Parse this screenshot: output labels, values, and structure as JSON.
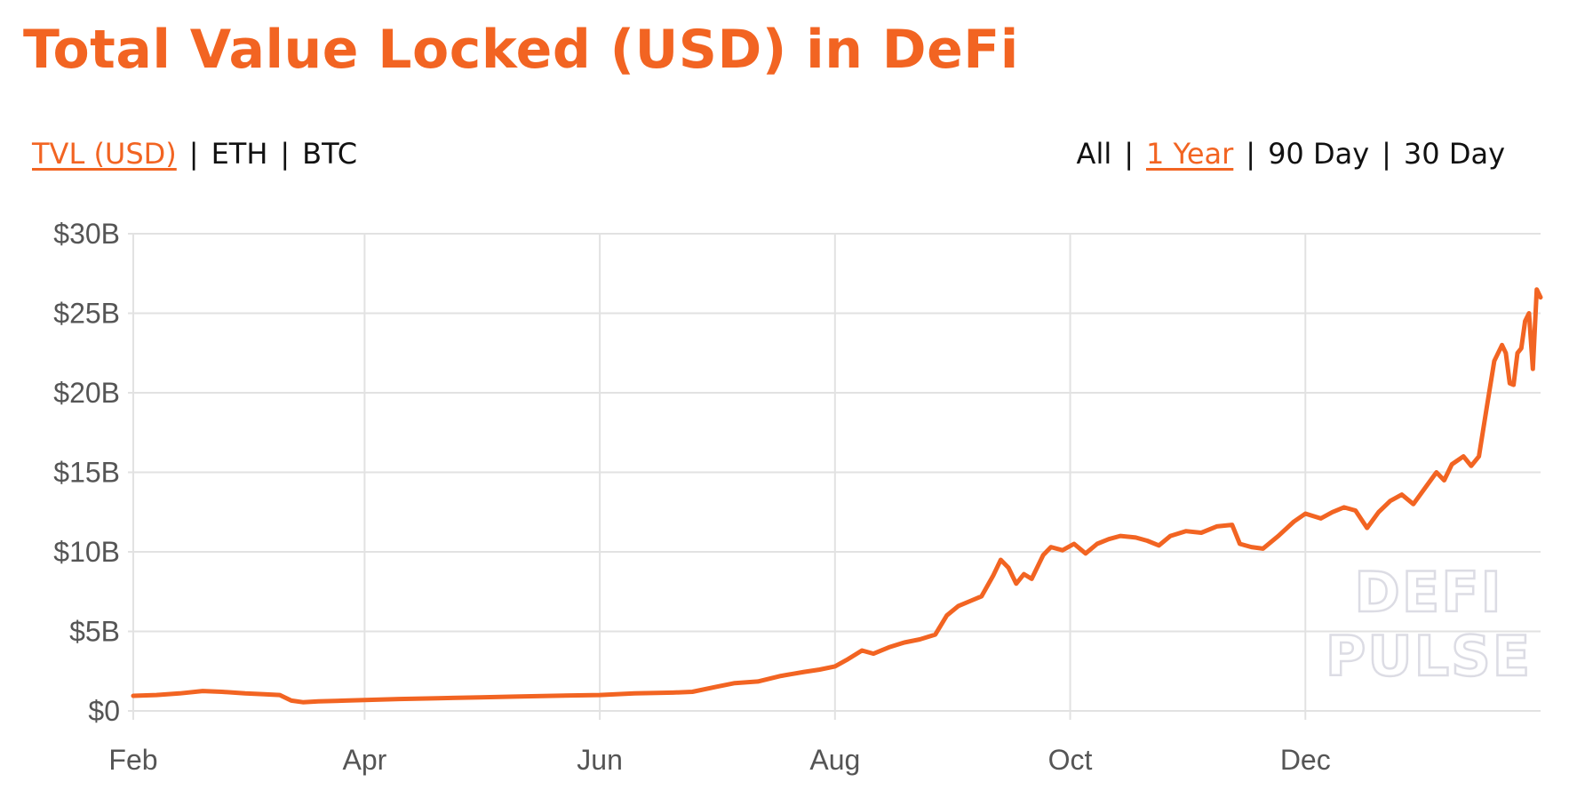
{
  "header": {
    "title": "Total Value Locked (USD) in DeFi"
  },
  "unit_toggle": {
    "options": [
      "TVL (USD)",
      "ETH",
      "BTC"
    ],
    "selected": "TVL (USD)"
  },
  "range_toggle": {
    "options": [
      "All",
      "1 Year",
      "90 Day",
      "30 Day"
    ],
    "selected": "1 Year"
  },
  "separator": "|",
  "watermark": {
    "line1": "DEFI",
    "line2": "PULSE"
  },
  "colors": {
    "accent": "#f26422",
    "line": "#f26422",
    "grid": "#e2e2e2",
    "tick_text": "#555555"
  },
  "chart_data": {
    "type": "line",
    "title": "Total Value Locked (USD) in DeFi",
    "xlabel": "",
    "ylabel": "",
    "x_axis": "date",
    "x_ticks": [
      "Feb",
      "Apr",
      "Jun",
      "Aug",
      "Oct",
      "Dec"
    ],
    "x_tick_dates": [
      "2020-02-01",
      "2020-04-01",
      "2020-06-01",
      "2020-08-01",
      "2020-10-01",
      "2020-12-01"
    ],
    "xlim": [
      "2020-02-01",
      "2021-01-31"
    ],
    "y_ticks": [
      "$0",
      "$5B",
      "$10B",
      "$15B",
      "$20B",
      "$25B",
      "$30B"
    ],
    "ylim": [
      0,
      30
    ],
    "y_unit": "billion USD",
    "grid": true,
    "legend": "none",
    "series": [
      {
        "points": [
          [
            "2020-02-01",
            0.95
          ],
          [
            "2020-02-07",
            1.0
          ],
          [
            "2020-02-13",
            1.1
          ],
          [
            "2020-02-19",
            1.25
          ],
          [
            "2020-02-24",
            1.2
          ],
          [
            "2020-03-01",
            1.1
          ],
          [
            "2020-03-06",
            1.05
          ],
          [
            "2020-03-10",
            1.0
          ],
          [
            "2020-03-13",
            0.65
          ],
          [
            "2020-03-16",
            0.55
          ],
          [
            "2020-03-20",
            0.6
          ],
          [
            "2020-03-27",
            0.65
          ],
          [
            "2020-04-01",
            0.68
          ],
          [
            "2020-04-10",
            0.75
          ],
          [
            "2020-04-20",
            0.8
          ],
          [
            "2020-05-01",
            0.85
          ],
          [
            "2020-05-10",
            0.9
          ],
          [
            "2020-05-20",
            0.95
          ],
          [
            "2020-06-01",
            1.0
          ],
          [
            "2020-06-10",
            1.1
          ],
          [
            "2020-06-20",
            1.15
          ],
          [
            "2020-06-25",
            1.2
          ],
          [
            "2020-07-01",
            1.5
          ],
          [
            "2020-07-06",
            1.75
          ],
          [
            "2020-07-12",
            1.85
          ],
          [
            "2020-07-18",
            2.2
          ],
          [
            "2020-07-24",
            2.45
          ],
          [
            "2020-07-28",
            2.6
          ],
          [
            "2020-08-01",
            2.8
          ],
          [
            "2020-08-04",
            3.2
          ],
          [
            "2020-08-08",
            3.8
          ],
          [
            "2020-08-11",
            3.6
          ],
          [
            "2020-08-15",
            4.0
          ],
          [
            "2020-08-19",
            4.3
          ],
          [
            "2020-08-23",
            4.5
          ],
          [
            "2020-08-27",
            4.8
          ],
          [
            "2020-08-30",
            6.0
          ],
          [
            "2020-09-02",
            6.6
          ],
          [
            "2020-09-05",
            6.9
          ],
          [
            "2020-09-08",
            7.2
          ],
          [
            "2020-09-11",
            8.5
          ],
          [
            "2020-09-13",
            9.5
          ],
          [
            "2020-09-15",
            9.0
          ],
          [
            "2020-09-17",
            8.0
          ],
          [
            "2020-09-19",
            8.6
          ],
          [
            "2020-09-21",
            8.3
          ],
          [
            "2020-09-24",
            9.8
          ],
          [
            "2020-09-26",
            10.3
          ],
          [
            "2020-09-29",
            10.1
          ],
          [
            "2020-10-02",
            10.5
          ],
          [
            "2020-10-05",
            9.9
          ],
          [
            "2020-10-08",
            10.5
          ],
          [
            "2020-10-11",
            10.8
          ],
          [
            "2020-10-14",
            11.0
          ],
          [
            "2020-10-18",
            10.9
          ],
          [
            "2020-10-21",
            10.7
          ],
          [
            "2020-10-24",
            10.4
          ],
          [
            "2020-10-27",
            11.0
          ],
          [
            "2020-10-31",
            11.3
          ],
          [
            "2020-11-04",
            11.2
          ],
          [
            "2020-11-08",
            11.6
          ],
          [
            "2020-11-12",
            11.7
          ],
          [
            "2020-11-14",
            10.5
          ],
          [
            "2020-11-17",
            10.3
          ],
          [
            "2020-11-20",
            10.2
          ],
          [
            "2020-11-24",
            11.0
          ],
          [
            "2020-11-28",
            11.9
          ],
          [
            "2020-12-01",
            12.4
          ],
          [
            "2020-12-05",
            12.1
          ],
          [
            "2020-12-08",
            12.5
          ],
          [
            "2020-12-11",
            12.8
          ],
          [
            "2020-12-14",
            12.6
          ],
          [
            "2020-12-17",
            11.5
          ],
          [
            "2020-12-20",
            12.5
          ],
          [
            "2020-12-23",
            13.2
          ],
          [
            "2020-12-26",
            13.6
          ],
          [
            "2020-12-29",
            13.0
          ],
          [
            "2021-01-01",
            14.0
          ],
          [
            "2021-01-04",
            15.0
          ],
          [
            "2021-01-06",
            14.5
          ],
          [
            "2021-01-08",
            15.5
          ],
          [
            "2021-01-11",
            16.0
          ],
          [
            "2021-01-13",
            15.4
          ],
          [
            "2021-01-15",
            16.0
          ],
          [
            "2021-01-17",
            19.0
          ],
          [
            "2021-01-19",
            22.0
          ],
          [
            "2021-01-21",
            23.0
          ],
          [
            "2021-01-22",
            22.5
          ],
          [
            "2021-01-23",
            20.6
          ],
          [
            "2021-01-24",
            20.5
          ],
          [
            "2021-01-25",
            22.5
          ],
          [
            "2021-01-26",
            22.8
          ],
          [
            "2021-01-27",
            24.5
          ],
          [
            "2021-01-28",
            25.0
          ],
          [
            "2021-01-29",
            21.5
          ],
          [
            "2021-01-30",
            26.5
          ],
          [
            "2021-01-31",
            26.0
          ]
        ]
      }
    ]
  }
}
